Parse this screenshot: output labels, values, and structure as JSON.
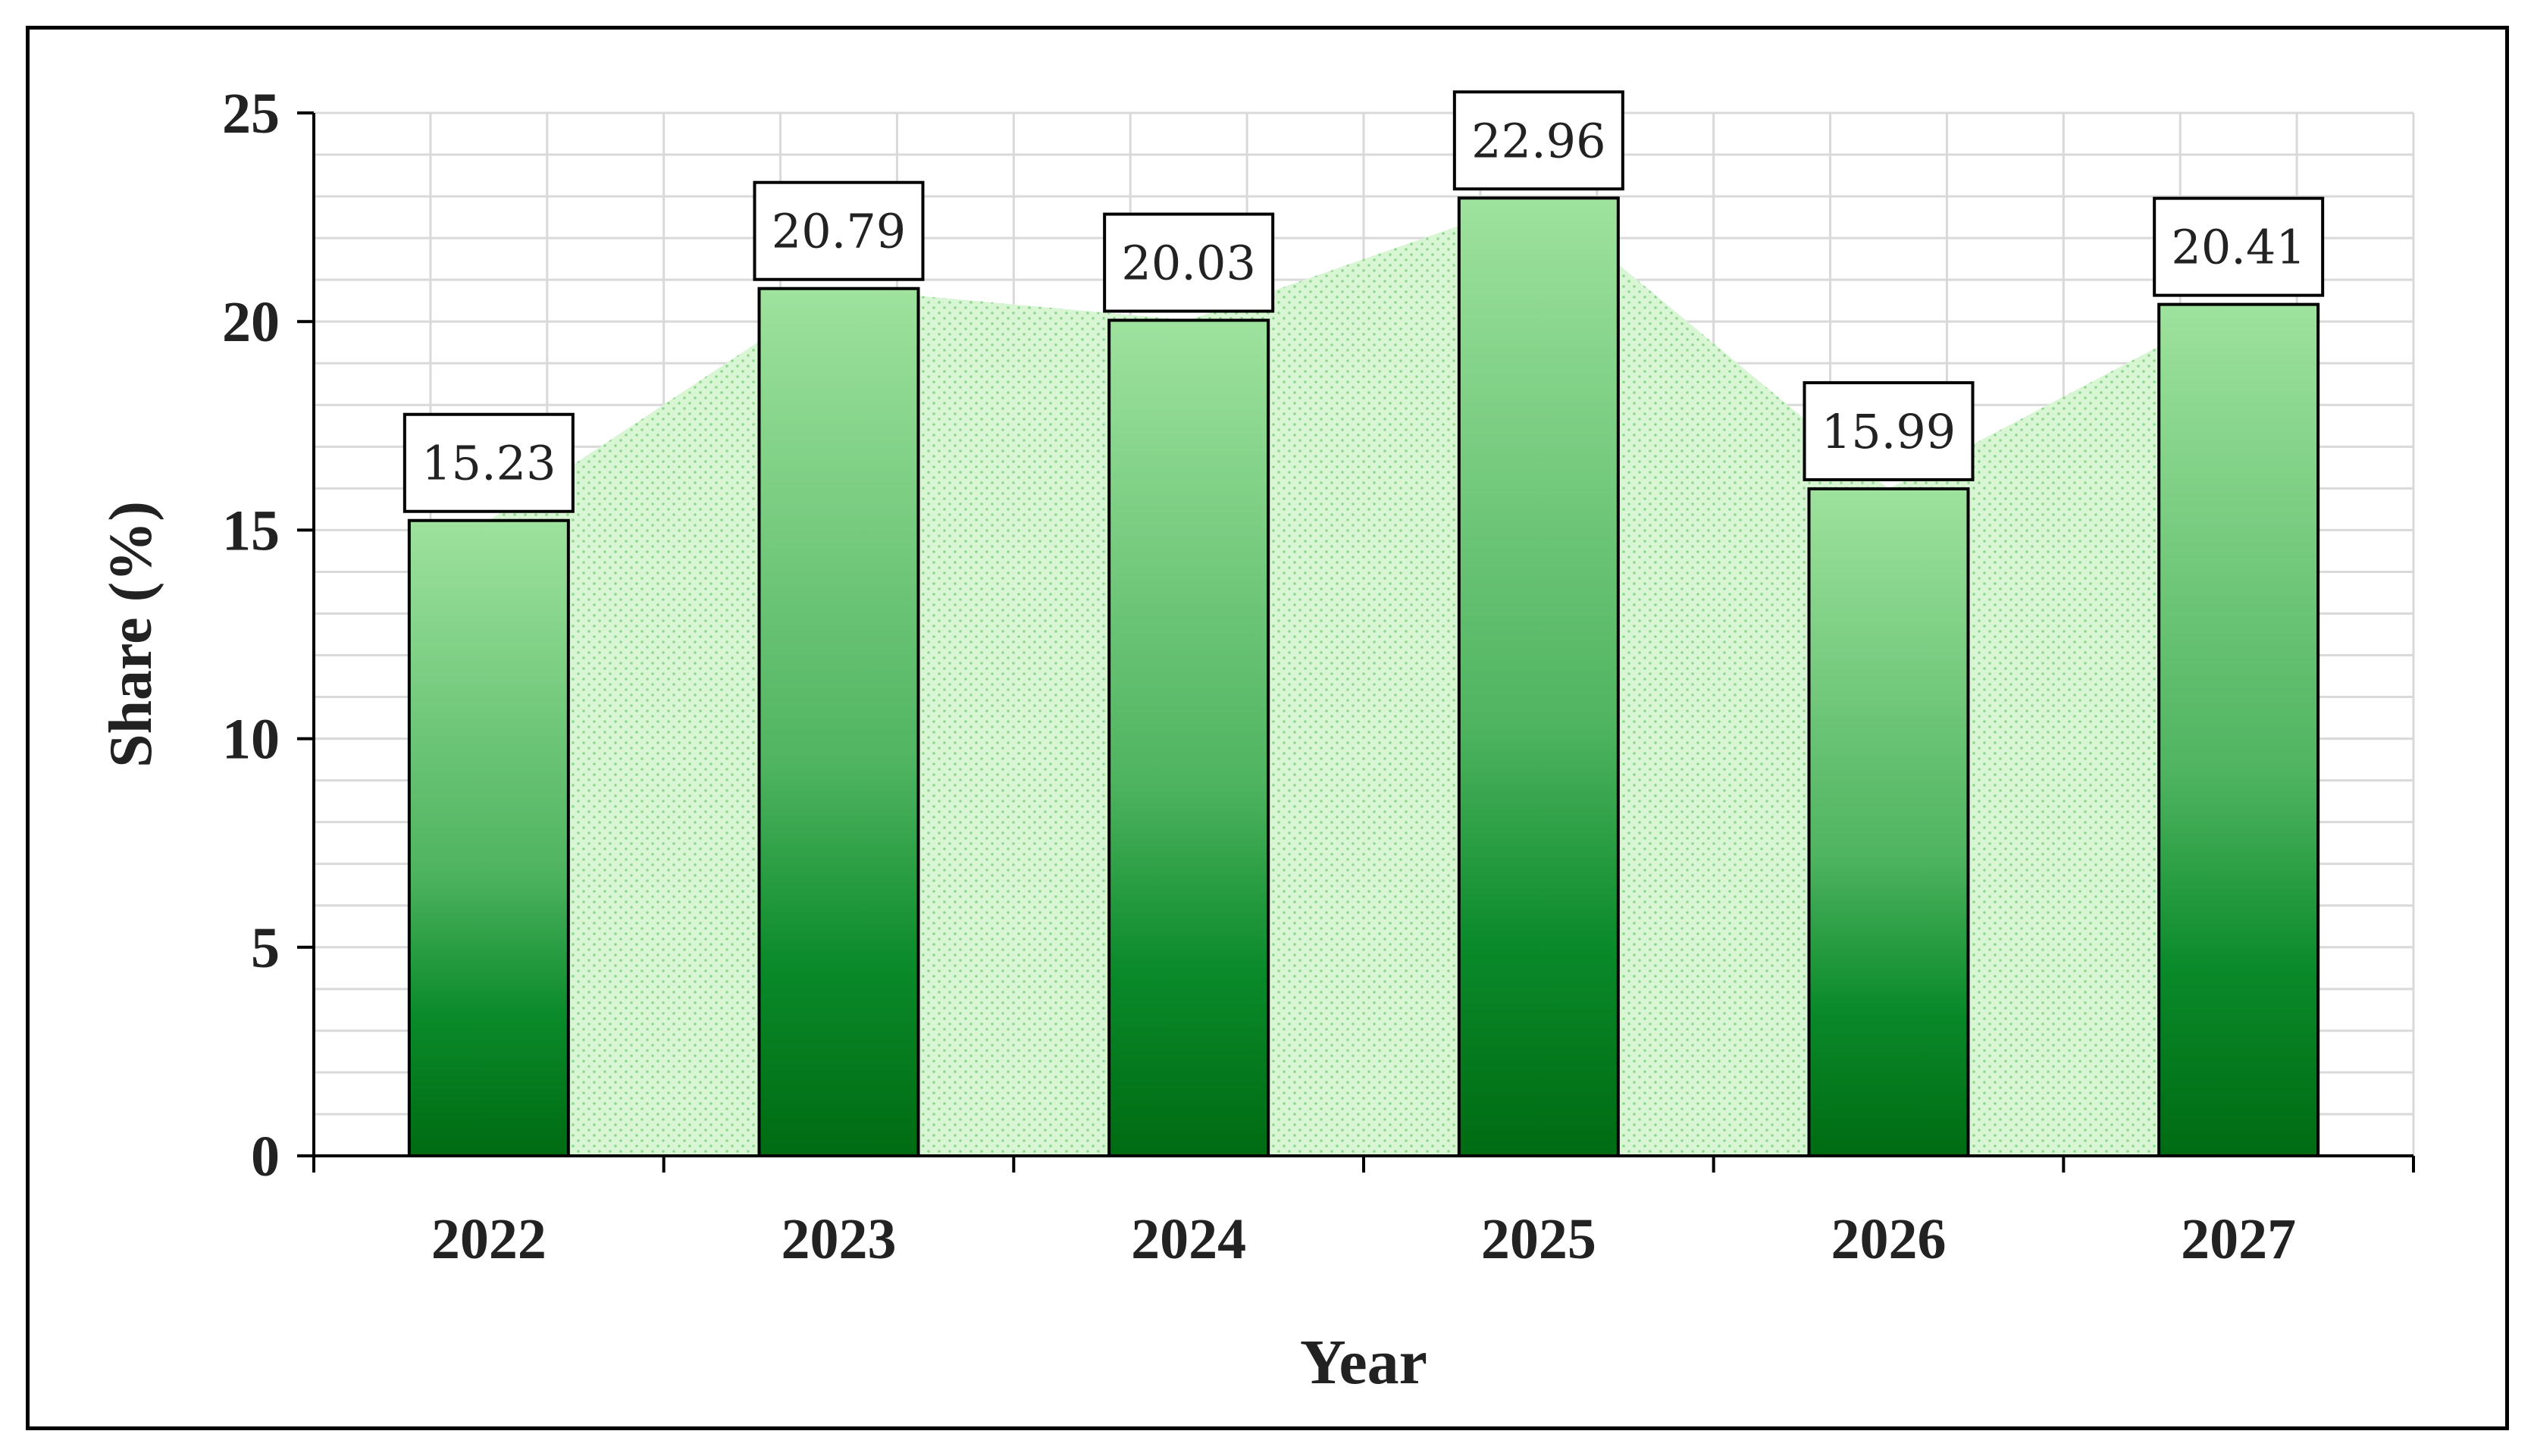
{
  "chart_data": {
    "type": "bar",
    "title": "",
    "xlabel": "Year",
    "ylabel": "Share (%)",
    "categories": [
      "2022",
      "2023",
      "2024",
      "2025",
      "2026",
      "2027"
    ],
    "values": [
      15.23,
      20.79,
      20.03,
      22.96,
      15.99,
      20.41
    ],
    "data_labels": [
      "15.23",
      "20.79",
      "20.03",
      "22.96",
      "15.99",
      "20.41"
    ],
    "ylim": [
      0,
      25
    ],
    "yticks": [
      0,
      5,
      10,
      15,
      20,
      25
    ],
    "ytick_labels": [
      "0",
      "5",
      "10",
      "15",
      "20",
      "25"
    ],
    "grid": true,
    "legend": "none",
    "overlay": "dotted area following the bar values",
    "colors": {
      "bar_top": "#9ee29e",
      "bar_bottom": "#006b12",
      "area_fill": "#d8f5d4",
      "area_dots": "#8fd68f",
      "grid": "#d9d9d9",
      "axis": "#000000"
    }
  }
}
